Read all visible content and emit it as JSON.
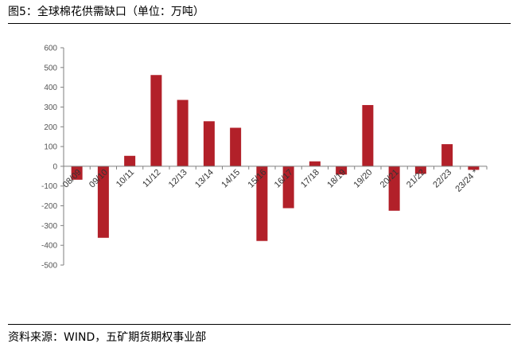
{
  "header": {
    "title": "图5：全球棉花供需缺口（单位：万吨）"
  },
  "footer": {
    "source": "资料来源：WIND，五矿期货期权事业部"
  },
  "colors": {
    "bar": "#b22029",
    "axis": "#7f7f7f"
  },
  "chart_data": {
    "type": "bar",
    "categories": [
      "08/09",
      "09/10",
      "10/11",
      "11/12",
      "12/13",
      "13/14",
      "14/15",
      "15/16",
      "16/17",
      "17/18",
      "18/19",
      "19/20",
      "20/21",
      "21/22",
      "22/23",
      "23/24 *"
    ],
    "values": [
      -68,
      -362,
      53,
      462,
      336,
      228,
      195,
      -378,
      -212,
      25,
      -42,
      310,
      -225,
      -38,
      112,
      -18
    ],
    "yticks": [
      600,
      500,
      400,
      300,
      200,
      100,
      0,
      -100,
      -200,
      -300,
      -400,
      -500
    ],
    "ylim": [
      -500,
      600
    ],
    "grid": false,
    "legend": false
  }
}
